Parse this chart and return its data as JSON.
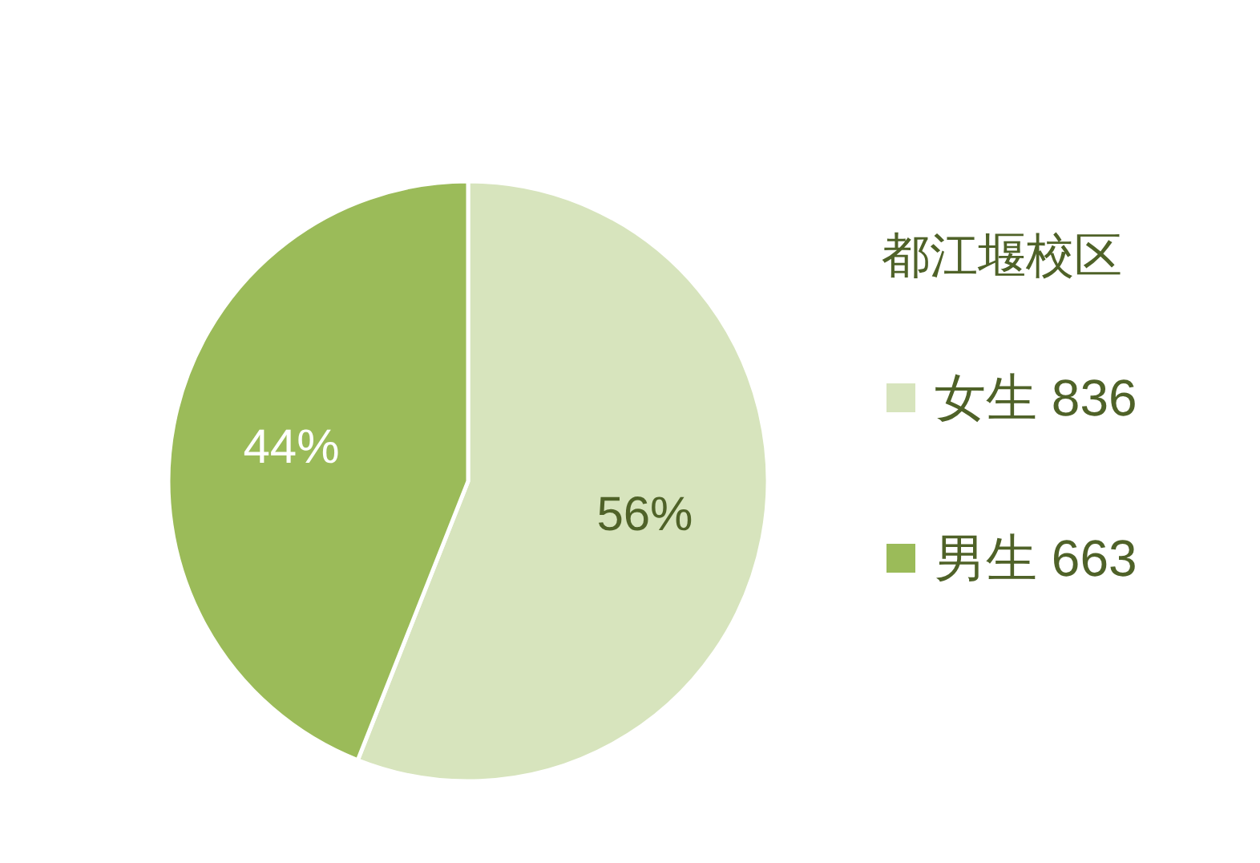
{
  "chart_data": {
    "type": "pie",
    "legend_title": "都江堰校区",
    "categories": [
      "女生 836",
      "男生 663"
    ],
    "values": [
      56,
      44
    ],
    "colors": [
      "#d7e4bd",
      "#9bbb59"
    ],
    "value_labels": [
      "56%",
      "44%"
    ],
    "legend": "right"
  }
}
